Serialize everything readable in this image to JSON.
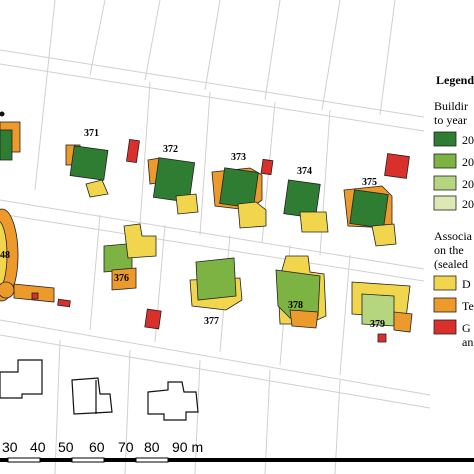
{
  "legend": {
    "title": "Legend",
    "buildings_heading_line1": "Buildir",
    "buildings_heading_line2": "to year",
    "building_years": [
      "20",
      "20",
      "20",
      "20"
    ],
    "assoc_heading_line1": "Associa",
    "assoc_heading_line2": "on the",
    "assoc_heading_line3": "(sealed",
    "assoc_items": [
      "D",
      "Te",
      "G"
    ],
    "assoc_extra": "an"
  },
  "colors": {
    "dark_green": "#2f7d32",
    "mid_green": "#7cb342",
    "light_green": "#b5d67f",
    "pale_green": "#dbe9b5",
    "yellow": "#f1d54c",
    "orange": "#ec9a2c",
    "red": "#d9302c",
    "parcel_line": "#d0d0d0"
  },
  "plot_labels": [
    "371",
    "372",
    "373",
    "374",
    "375",
    "376",
    "377",
    "378",
    "379",
    "48"
  ],
  "scale_bar": {
    "ticks": [
      "30",
      "40",
      "50",
      "60",
      "70",
      "80",
      "90 m"
    ]
  }
}
